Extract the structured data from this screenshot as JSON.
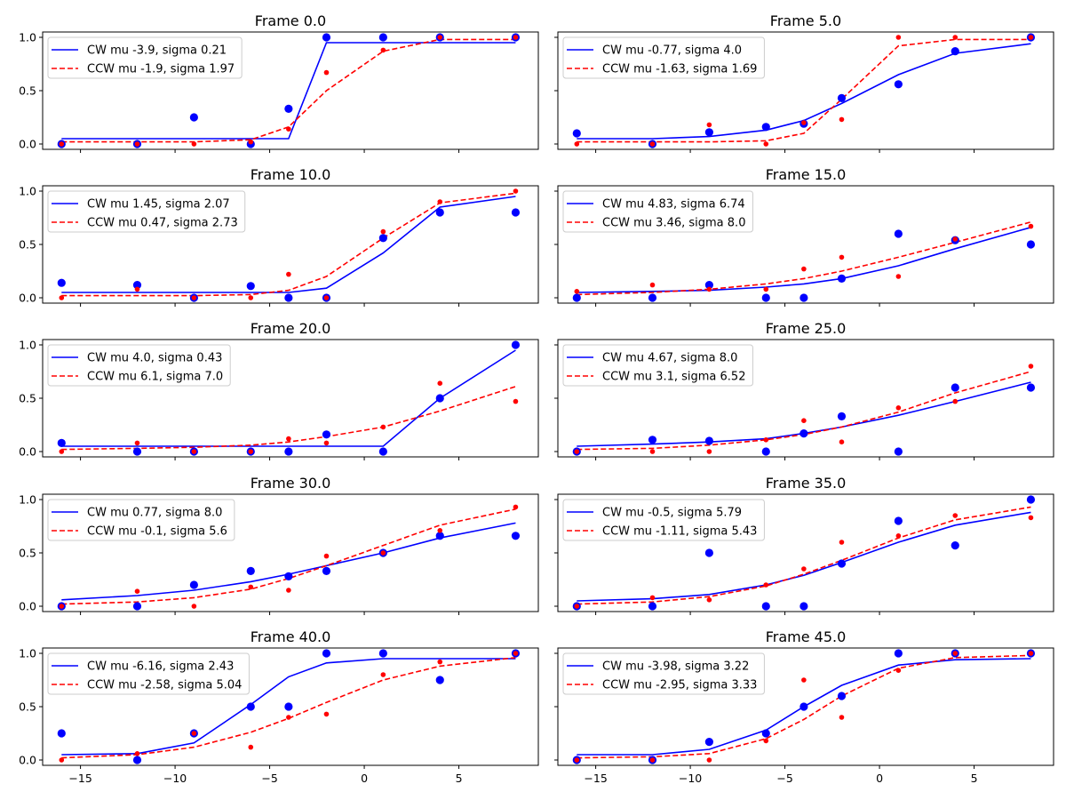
{
  "colors": {
    "cw": "#0000ff",
    "ccw": "#ff0000",
    "axes": "#000000",
    "background": "#ffffff"
  },
  "x_ticks": [
    -15,
    -10,
    -5,
    0,
    5
  ],
  "y_ticks": [
    0.0,
    0.5,
    1.0
  ],
  "chart_data": [
    {
      "type": "scatter",
      "title": "Frame 0.0",
      "xlim": [
        -17,
        9.2
      ],
      "ylim": [
        -0.05,
        1.05
      ],
      "legend": "top-left",
      "x": [
        -16,
        -12,
        -9,
        -6,
        -4,
        -2,
        1,
        4,
        8
      ],
      "series": [
        {
          "name": "CW mu -3.9, sigma 0.21",
          "points": [
            0.0,
            0.0,
            0.25,
            0.0,
            0.33,
            1.0,
            1.0,
            1.0,
            1.0
          ],
          "fit": [
            0.05,
            0.05,
            0.05,
            0.05,
            0.05,
            0.95,
            0.95,
            0.95,
            0.95
          ]
        },
        {
          "name": "CCW mu -1.9, sigma 1.97",
          "points": [
            0.0,
            0.0,
            0.0,
            0.02,
            0.14,
            0.67,
            0.88,
            1.0,
            1.0
          ],
          "fit": [
            0.02,
            0.02,
            0.02,
            0.04,
            0.16,
            0.5,
            0.87,
            0.98,
            0.98
          ]
        }
      ]
    },
    {
      "type": "scatter",
      "title": "Frame 5.0",
      "xlim": [
        -17,
        9.2
      ],
      "ylim": [
        -0.05,
        1.05
      ],
      "legend": "top-left",
      "x": [
        -16,
        -12,
        -9,
        -6,
        -4,
        -2,
        1,
        4,
        8
      ],
      "series": [
        {
          "name": "CW mu -0.77, sigma 4.0",
          "points": [
            0.1,
            0.0,
            0.11,
            0.16,
            0.19,
            0.43,
            0.56,
            0.87,
            1.0
          ],
          "fit": [
            0.05,
            0.05,
            0.07,
            0.13,
            0.22,
            0.38,
            0.65,
            0.85,
            0.94
          ]
        },
        {
          "name": "CCW mu -1.63, sigma 1.69",
          "points": [
            0.0,
            0.0,
            0.18,
            0.0,
            0.2,
            0.23,
            1.0,
            1.0,
            1.0
          ],
          "fit": [
            0.02,
            0.02,
            0.02,
            0.03,
            0.1,
            0.42,
            0.92,
            0.98,
            0.98
          ]
        }
      ]
    },
    {
      "type": "scatter",
      "title": "Frame 10.0",
      "xlim": [
        -17,
        9.2
      ],
      "ylim": [
        -0.05,
        1.05
      ],
      "legend": "top-left",
      "x": [
        -16,
        -12,
        -9,
        -6,
        -4,
        -2,
        1,
        4,
        8
      ],
      "series": [
        {
          "name": "CW mu 1.45, sigma 2.07",
          "points": [
            0.14,
            0.12,
            0.0,
            0.11,
            0.0,
            0.0,
            0.56,
            0.8,
            0.8
          ],
          "fit": [
            0.05,
            0.05,
            0.05,
            0.05,
            0.05,
            0.09,
            0.42,
            0.85,
            0.95
          ]
        },
        {
          "name": "CCW mu 0.47, sigma 2.73",
          "points": [
            0.0,
            0.08,
            0.0,
            0.0,
            0.22,
            0.0,
            0.62,
            0.9,
            1.0
          ],
          "fit": [
            0.02,
            0.02,
            0.02,
            0.03,
            0.07,
            0.2,
            0.56,
            0.89,
            0.98
          ]
        }
      ]
    },
    {
      "type": "scatter",
      "title": "Frame 15.0",
      "xlim": [
        -17,
        9.2
      ],
      "ylim": [
        -0.05,
        1.05
      ],
      "legend": "top-left",
      "x": [
        -16,
        -12,
        -9,
        -6,
        -4,
        -2,
        1,
        4,
        8
      ],
      "series": [
        {
          "name": "CW mu 4.83, sigma 6.74",
          "points": [
            0.0,
            0.0,
            0.12,
            0.0,
            0.0,
            0.18,
            0.6,
            0.54,
            0.5
          ],
          "fit": [
            0.05,
            0.06,
            0.07,
            0.1,
            0.13,
            0.18,
            0.3,
            0.46,
            0.66
          ]
        },
        {
          "name": "CCW mu 3.46, sigma 8.0",
          "points": [
            0.06,
            0.12,
            0.08,
            0.08,
            0.27,
            0.38,
            0.2,
            0.55,
            0.67
          ],
          "fit": [
            0.03,
            0.05,
            0.08,
            0.13,
            0.18,
            0.25,
            0.38,
            0.52,
            0.71
          ]
        }
      ]
    },
    {
      "type": "scatter",
      "title": "Frame 20.0",
      "xlim": [
        -17,
        9.2
      ],
      "ylim": [
        -0.05,
        1.05
      ],
      "legend": "top-left",
      "x": [
        -16,
        -12,
        -9,
        -6,
        -4,
        -2,
        1,
        4,
        8
      ],
      "series": [
        {
          "name": "CW mu 4.0, sigma 0.43",
          "points": [
            0.08,
            0.0,
            0.0,
            0.0,
            0.0,
            0.16,
            0.0,
            0.5,
            1.0
          ],
          "fit": [
            0.05,
            0.05,
            0.05,
            0.05,
            0.05,
            0.05,
            0.05,
            0.5,
            0.95
          ]
        },
        {
          "name": "CCW mu 6.1, sigma 7.0",
          "points": [
            0.0,
            0.08,
            0.0,
            0.0,
            0.12,
            0.08,
            0.23,
            0.64,
            0.47
          ],
          "fit": [
            0.02,
            0.03,
            0.04,
            0.06,
            0.09,
            0.14,
            0.23,
            0.38,
            0.61
          ]
        }
      ]
    },
    {
      "type": "scatter",
      "title": "Frame 25.0",
      "xlim": [
        -17,
        9.2
      ],
      "ylim": [
        -0.05,
        1.05
      ],
      "legend": "top-left",
      "x": [
        -16,
        -12,
        -9,
        -6,
        -4,
        -2,
        1,
        4,
        8
      ],
      "series": [
        {
          "name": "CW mu 4.67, sigma 8.0",
          "points": [
            0.0,
            0.11,
            0.1,
            0.0,
            0.17,
            0.33,
            0.0,
            0.6,
            0.6
          ],
          "fit": [
            0.05,
            0.07,
            0.09,
            0.12,
            0.17,
            0.23,
            0.34,
            0.47,
            0.65
          ]
        },
        {
          "name": "CCW mu 3.1, sigma 6.52",
          "points": [
            0.0,
            0.0,
            0.0,
            0.11,
            0.29,
            0.09,
            0.41,
            0.47,
            0.8
          ],
          "fit": [
            0.02,
            0.03,
            0.06,
            0.11,
            0.16,
            0.23,
            0.37,
            0.55,
            0.75
          ]
        }
      ]
    },
    {
      "type": "scatter",
      "title": "Frame 30.0",
      "xlim": [
        -17,
        9.2
      ],
      "ylim": [
        -0.05,
        1.05
      ],
      "legend": "top-left",
      "x": [
        -16,
        -12,
        -9,
        -6,
        -4,
        -2,
        1,
        4,
        8
      ],
      "series": [
        {
          "name": "CW mu 0.77, sigma 8.0",
          "points": [
            0.0,
            0.0,
            0.2,
            0.33,
            0.28,
            0.33,
            0.5,
            0.66,
            0.66
          ],
          "fit": [
            0.06,
            0.1,
            0.15,
            0.23,
            0.3,
            0.38,
            0.5,
            0.64,
            0.78
          ]
        },
        {
          "name": "CCW mu -0.1, sigma 5.6",
          "points": [
            0.0,
            0.14,
            0.0,
            0.18,
            0.15,
            0.47,
            0.5,
            0.71,
            0.93
          ],
          "fit": [
            0.02,
            0.04,
            0.08,
            0.16,
            0.26,
            0.38,
            0.57,
            0.76,
            0.91
          ]
        }
      ]
    },
    {
      "type": "scatter",
      "title": "Frame 35.0",
      "xlim": [
        -17,
        9.2
      ],
      "ylim": [
        -0.05,
        1.05
      ],
      "legend": "top-left",
      "x": [
        -16,
        -12,
        -9,
        -6,
        -4,
        -2,
        1,
        4,
        8
      ],
      "series": [
        {
          "name": "CW mu -0.5, sigma 5.79",
          "points": [
            0.0,
            0.0,
            0.5,
            0.0,
            0.0,
            0.4,
            0.8,
            0.57,
            1.0
          ],
          "fit": [
            0.05,
            0.07,
            0.11,
            0.2,
            0.29,
            0.41,
            0.6,
            0.76,
            0.88
          ]
        },
        {
          "name": "CCW mu -1.11, sigma 5.43",
          "points": [
            0.0,
            0.08,
            0.06,
            0.2,
            0.35,
            0.6,
            0.66,
            0.85,
            0.83
          ],
          "fit": [
            0.02,
            0.04,
            0.09,
            0.19,
            0.3,
            0.43,
            0.64,
            0.81,
            0.93
          ]
        }
      ]
    },
    {
      "type": "scatter",
      "title": "Frame 40.0",
      "xlim": [
        -17,
        9.2
      ],
      "ylim": [
        -0.05,
        1.05
      ],
      "legend": "top-left",
      "x": [
        -16,
        -12,
        -9,
        -6,
        -4,
        -2,
        1,
        4,
        8
      ],
      "series": [
        {
          "name": "CW mu -6.16, sigma 2.43",
          "points": [
            0.25,
            0.0,
            0.25,
            0.5,
            0.5,
            1.0,
            1.0,
            0.75,
            1.0
          ],
          "fit": [
            0.05,
            0.06,
            0.16,
            0.52,
            0.78,
            0.91,
            0.95,
            0.95,
            0.95
          ]
        },
        {
          "name": "CCW mu -2.58, sigma 5.04",
          "points": [
            0.0,
            0.06,
            0.25,
            0.12,
            0.4,
            0.43,
            0.8,
            0.92,
            1.0
          ],
          "fit": [
            0.02,
            0.05,
            0.12,
            0.26,
            0.39,
            0.54,
            0.75,
            0.88,
            0.96
          ]
        }
      ]
    },
    {
      "type": "scatter",
      "title": "Frame 45.0",
      "xlim": [
        -17,
        9.2
      ],
      "ylim": [
        -0.05,
        1.05
      ],
      "legend": "top-left",
      "x": [
        -16,
        -12,
        -9,
        -6,
        -4,
        -2,
        1,
        4,
        8
      ],
      "series": [
        {
          "name": "CW mu -3.98, sigma 3.22",
          "points": [
            0.0,
            0.0,
            0.17,
            0.25,
            0.5,
            0.6,
            1.0,
            1.0,
            1.0
          ],
          "fit": [
            0.05,
            0.05,
            0.1,
            0.28,
            0.5,
            0.7,
            0.89,
            0.94,
            0.95
          ]
        },
        {
          "name": "CCW mu -2.95, sigma 3.33",
          "points": [
            0.0,
            0.0,
            0.0,
            0.18,
            0.75,
            0.4,
            0.84,
            1.0,
            1.0
          ],
          "fit": [
            0.02,
            0.03,
            0.06,
            0.2,
            0.38,
            0.6,
            0.86,
            0.96,
            0.98
          ]
        }
      ]
    }
  ]
}
